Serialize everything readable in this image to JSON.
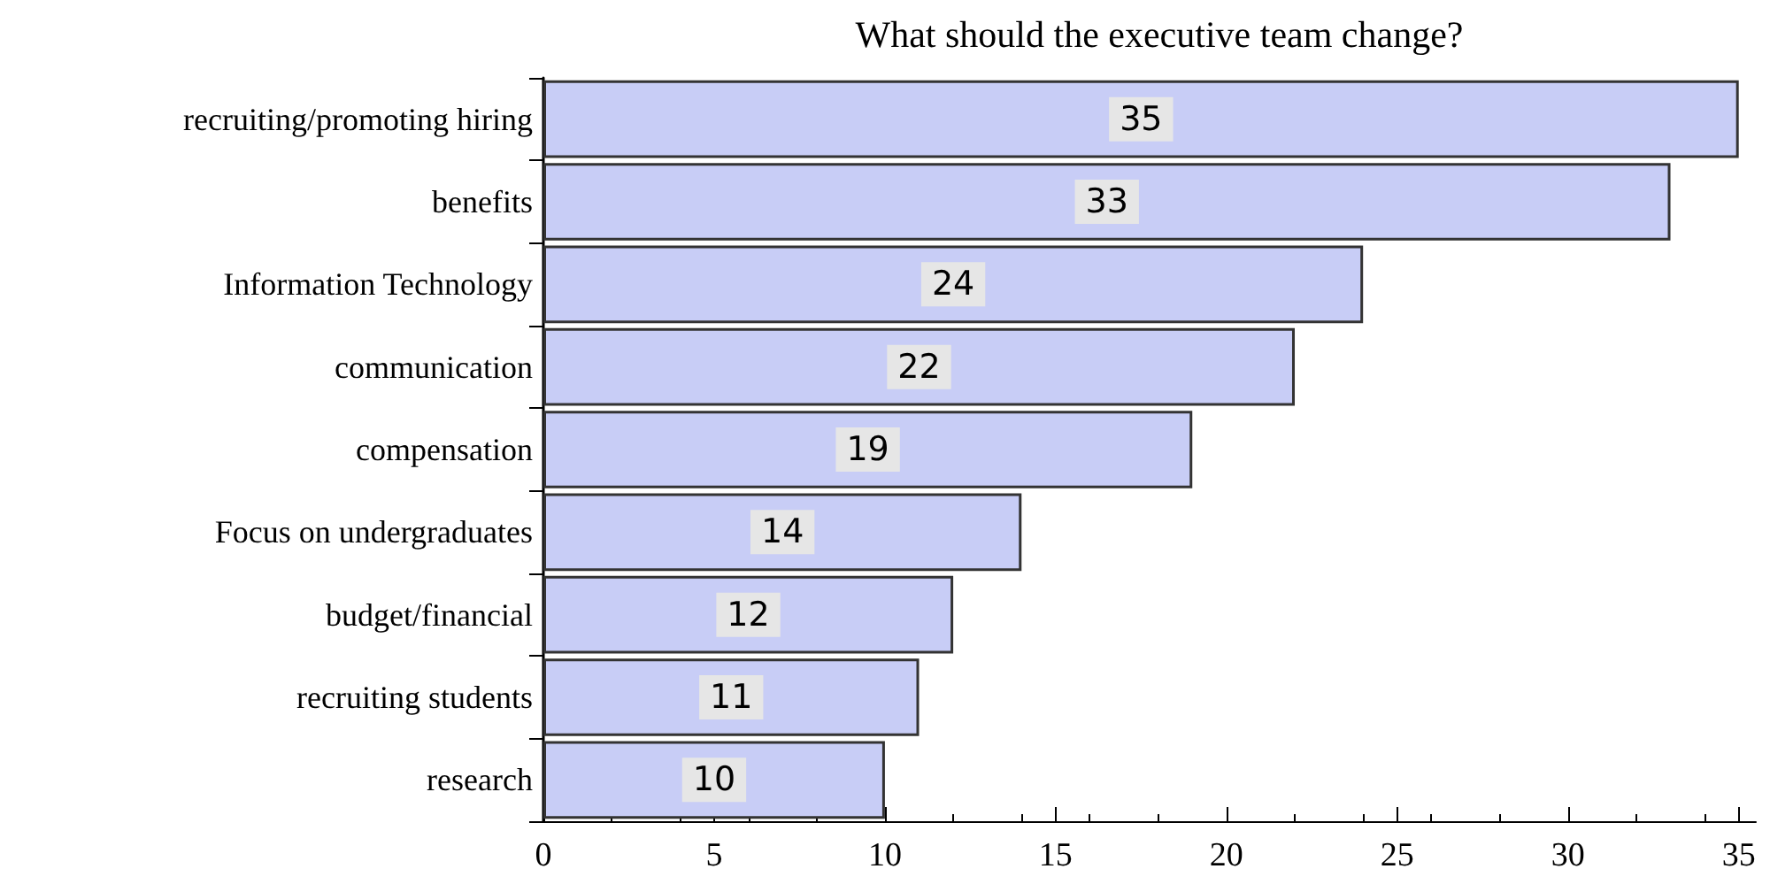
{
  "chart_data": {
    "type": "bar",
    "orientation": "horizontal",
    "title": "What should the executive team change?",
    "categories": [
      "recruiting/promoting hiring",
      "benefits",
      "Information Technology",
      "communication",
      "compensation",
      "Focus on undergraduates",
      "budget/financial",
      "recruiting students",
      "research"
    ],
    "values": [
      35,
      33,
      24,
      22,
      19,
      14,
      12,
      11,
      10
    ],
    "color": "#c8cdf6",
    "xlim": [
      0,
      35.5
    ],
    "xticks": [
      0,
      5,
      10,
      15,
      20,
      25,
      30,
      35
    ],
    "data_labels": true
  }
}
